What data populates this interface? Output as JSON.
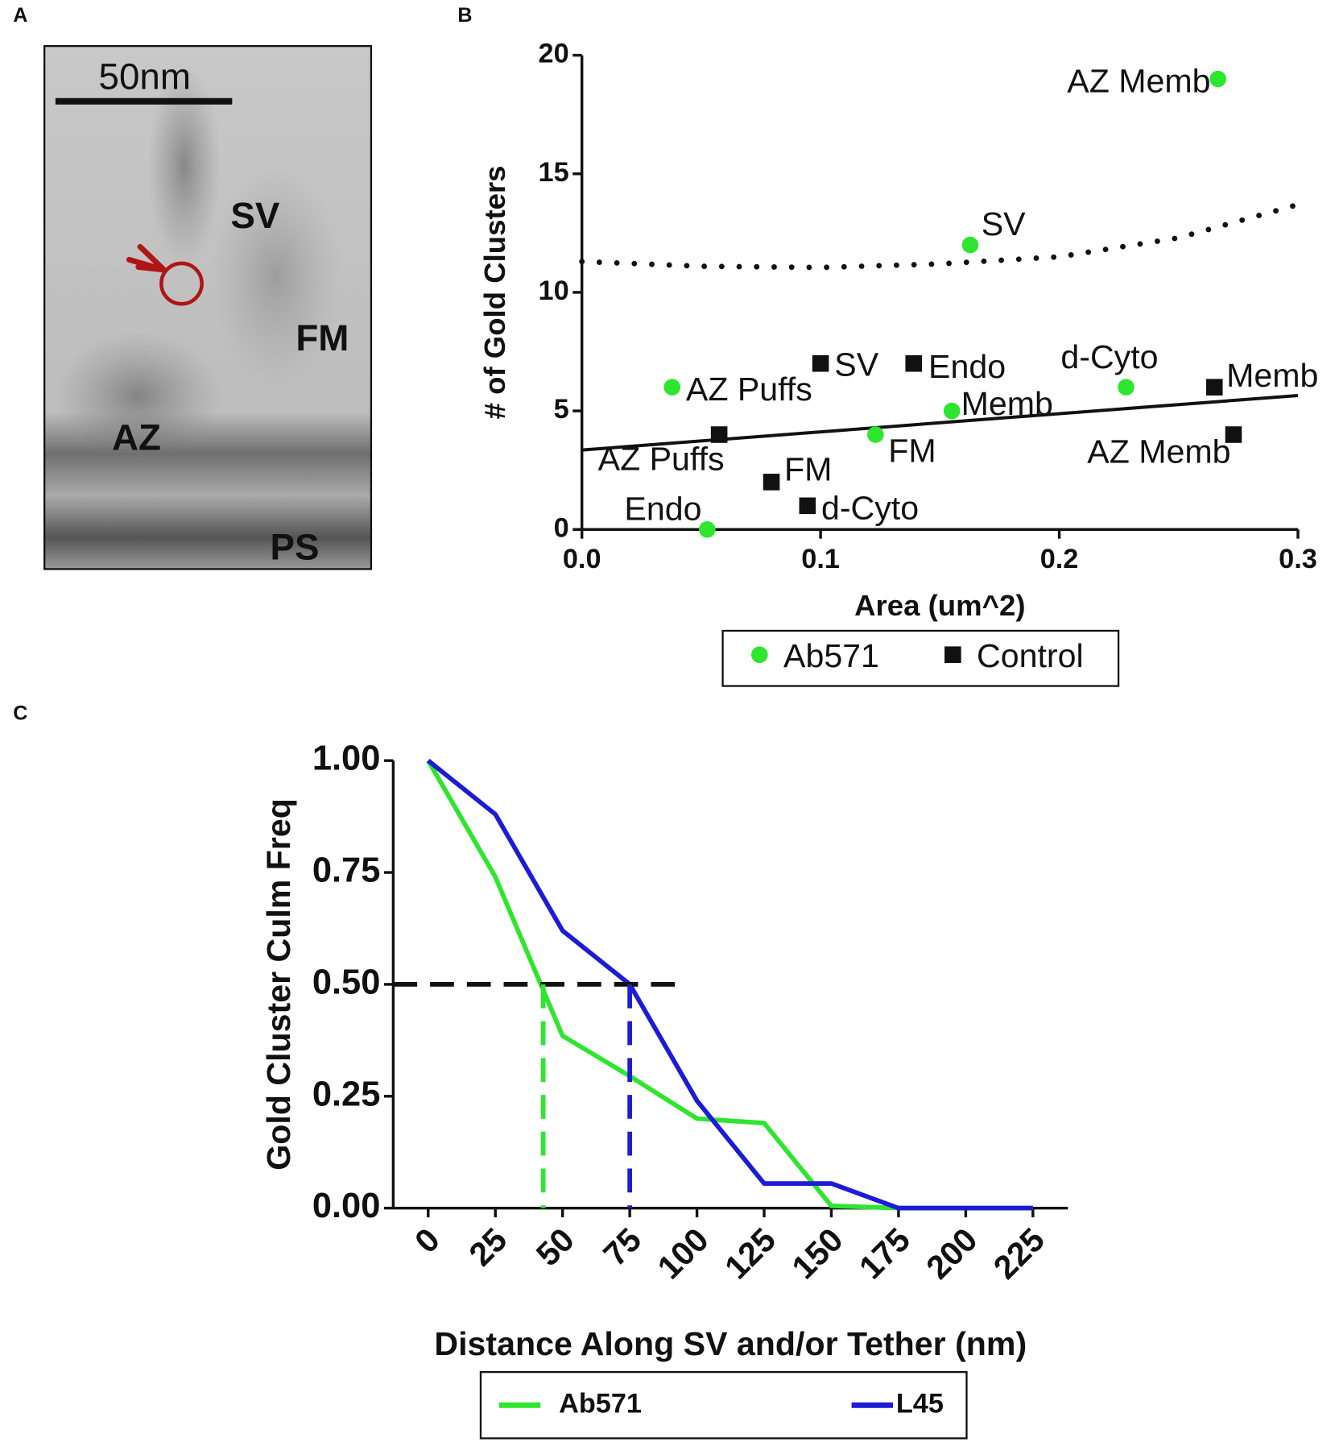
{
  "panel_labels": [
    "A",
    "B",
    "C"
  ],
  "micrograph": {
    "scale_bar": "50nm",
    "labels": [
      "SV",
      "FM",
      "AZ",
      "PS"
    ]
  },
  "chart_data": [
    {
      "type": "scatter",
      "xlabel": "Area (um^2)",
      "ylabel": "# of Gold Clusters",
      "xlim": [
        0,
        0.3
      ],
      "ylim": [
        0,
        20
      ],
      "xticks": [
        {
          "value": 0,
          "label": "0.0"
        },
        0.1,
        0.2,
        0.3
      ],
      "yticks": [
        0,
        5,
        10,
        15,
        20
      ],
      "legend": "bottom",
      "series": [
        {
          "name": "Ab571",
          "color": "#2ee62e",
          "marker": "circle",
          "x": [
            0.2665,
            0.1627,
            0.0378,
            0.228,
            0.155,
            0.123,
            0.0525
          ],
          "values": [
            19,
            12,
            6,
            6,
            5,
            4,
            0
          ],
          "point_labels": [
            "AZ Memb",
            "SV",
            "AZ Puffs",
            "d-Cyto",
            "Memb",
            "FM",
            "Endo"
          ]
        },
        {
          "name": "Control",
          "color": "#111111",
          "marker": "square",
          "x": [
            0.1,
            0.139,
            0.265,
            0.273,
            0.0575,
            0.0794,
            0.0945
          ],
          "values": [
            7,
            7,
            6,
            4,
            4,
            2,
            1
          ],
          "point_labels": [
            "SV",
            "Endo",
            "Memb",
            "AZ Memb",
            "AZ Puffs",
            "FM",
            "d-Cyto"
          ]
        }
      ],
      "fit_lines": [
        {
          "style": "dotted",
          "color": "#111111",
          "x": [
            0,
            0.05,
            0.1,
            0.15,
            0.2,
            0.25,
            0.3
          ],
          "values": [
            11.3,
            11.1,
            11.05,
            11.2,
            11.5,
            12.3,
            13.7
          ]
        },
        {
          "style": "solid",
          "color": "#111111",
          "x": [
            0,
            0.3
          ],
          "values": [
            3.35,
            5.65
          ]
        }
      ]
    },
    {
      "type": "line",
      "xlabel": "Distance Along SV and/or Tether (nm)",
      "ylabel": "Gold Cluster Culm Freq",
      "x": [
        0,
        25,
        50,
        75,
        100,
        125,
        150,
        175,
        200,
        225
      ],
      "xlim": [
        -13,
        238
      ],
      "ylim": [
        0,
        1
      ],
      "xticks": [
        0,
        25,
        50,
        75,
        100,
        125,
        150,
        175,
        200,
        225
      ],
      "yticks": [
        {
          "value": 0,
          "label": "0.00"
        },
        {
          "value": 0.25,
          "label": "0.25"
        },
        {
          "value": 0.5,
          "label": "0.50"
        },
        {
          "value": 0.75,
          "label": "0.75"
        },
        {
          "value": 1,
          "label": "1.00"
        }
      ],
      "legend": "bottom",
      "series": [
        {
          "name": "Ab571",
          "color": "#2ee62e",
          "values": [
            1,
            0.74,
            0.385,
            0.295,
            0.2,
            0.19,
            0.005,
            0,
            0,
            0
          ]
        },
        {
          "name": "L45",
          "color": "#1c1cd6",
          "values": [
            1,
            0.88,
            0.62,
            0.5,
            0.24,
            0.055,
            0.055,
            0,
            0,
            0
          ]
        }
      ],
      "threshold": {
        "y": 0.5,
        "x_range": [
          -13,
          94
        ],
        "color": "#111111"
      },
      "median_lines": [
        {
          "x": 42.8,
          "color": "#2ee62e"
        },
        {
          "x": 75,
          "color": "#1c1cd6"
        }
      ]
    }
  ]
}
